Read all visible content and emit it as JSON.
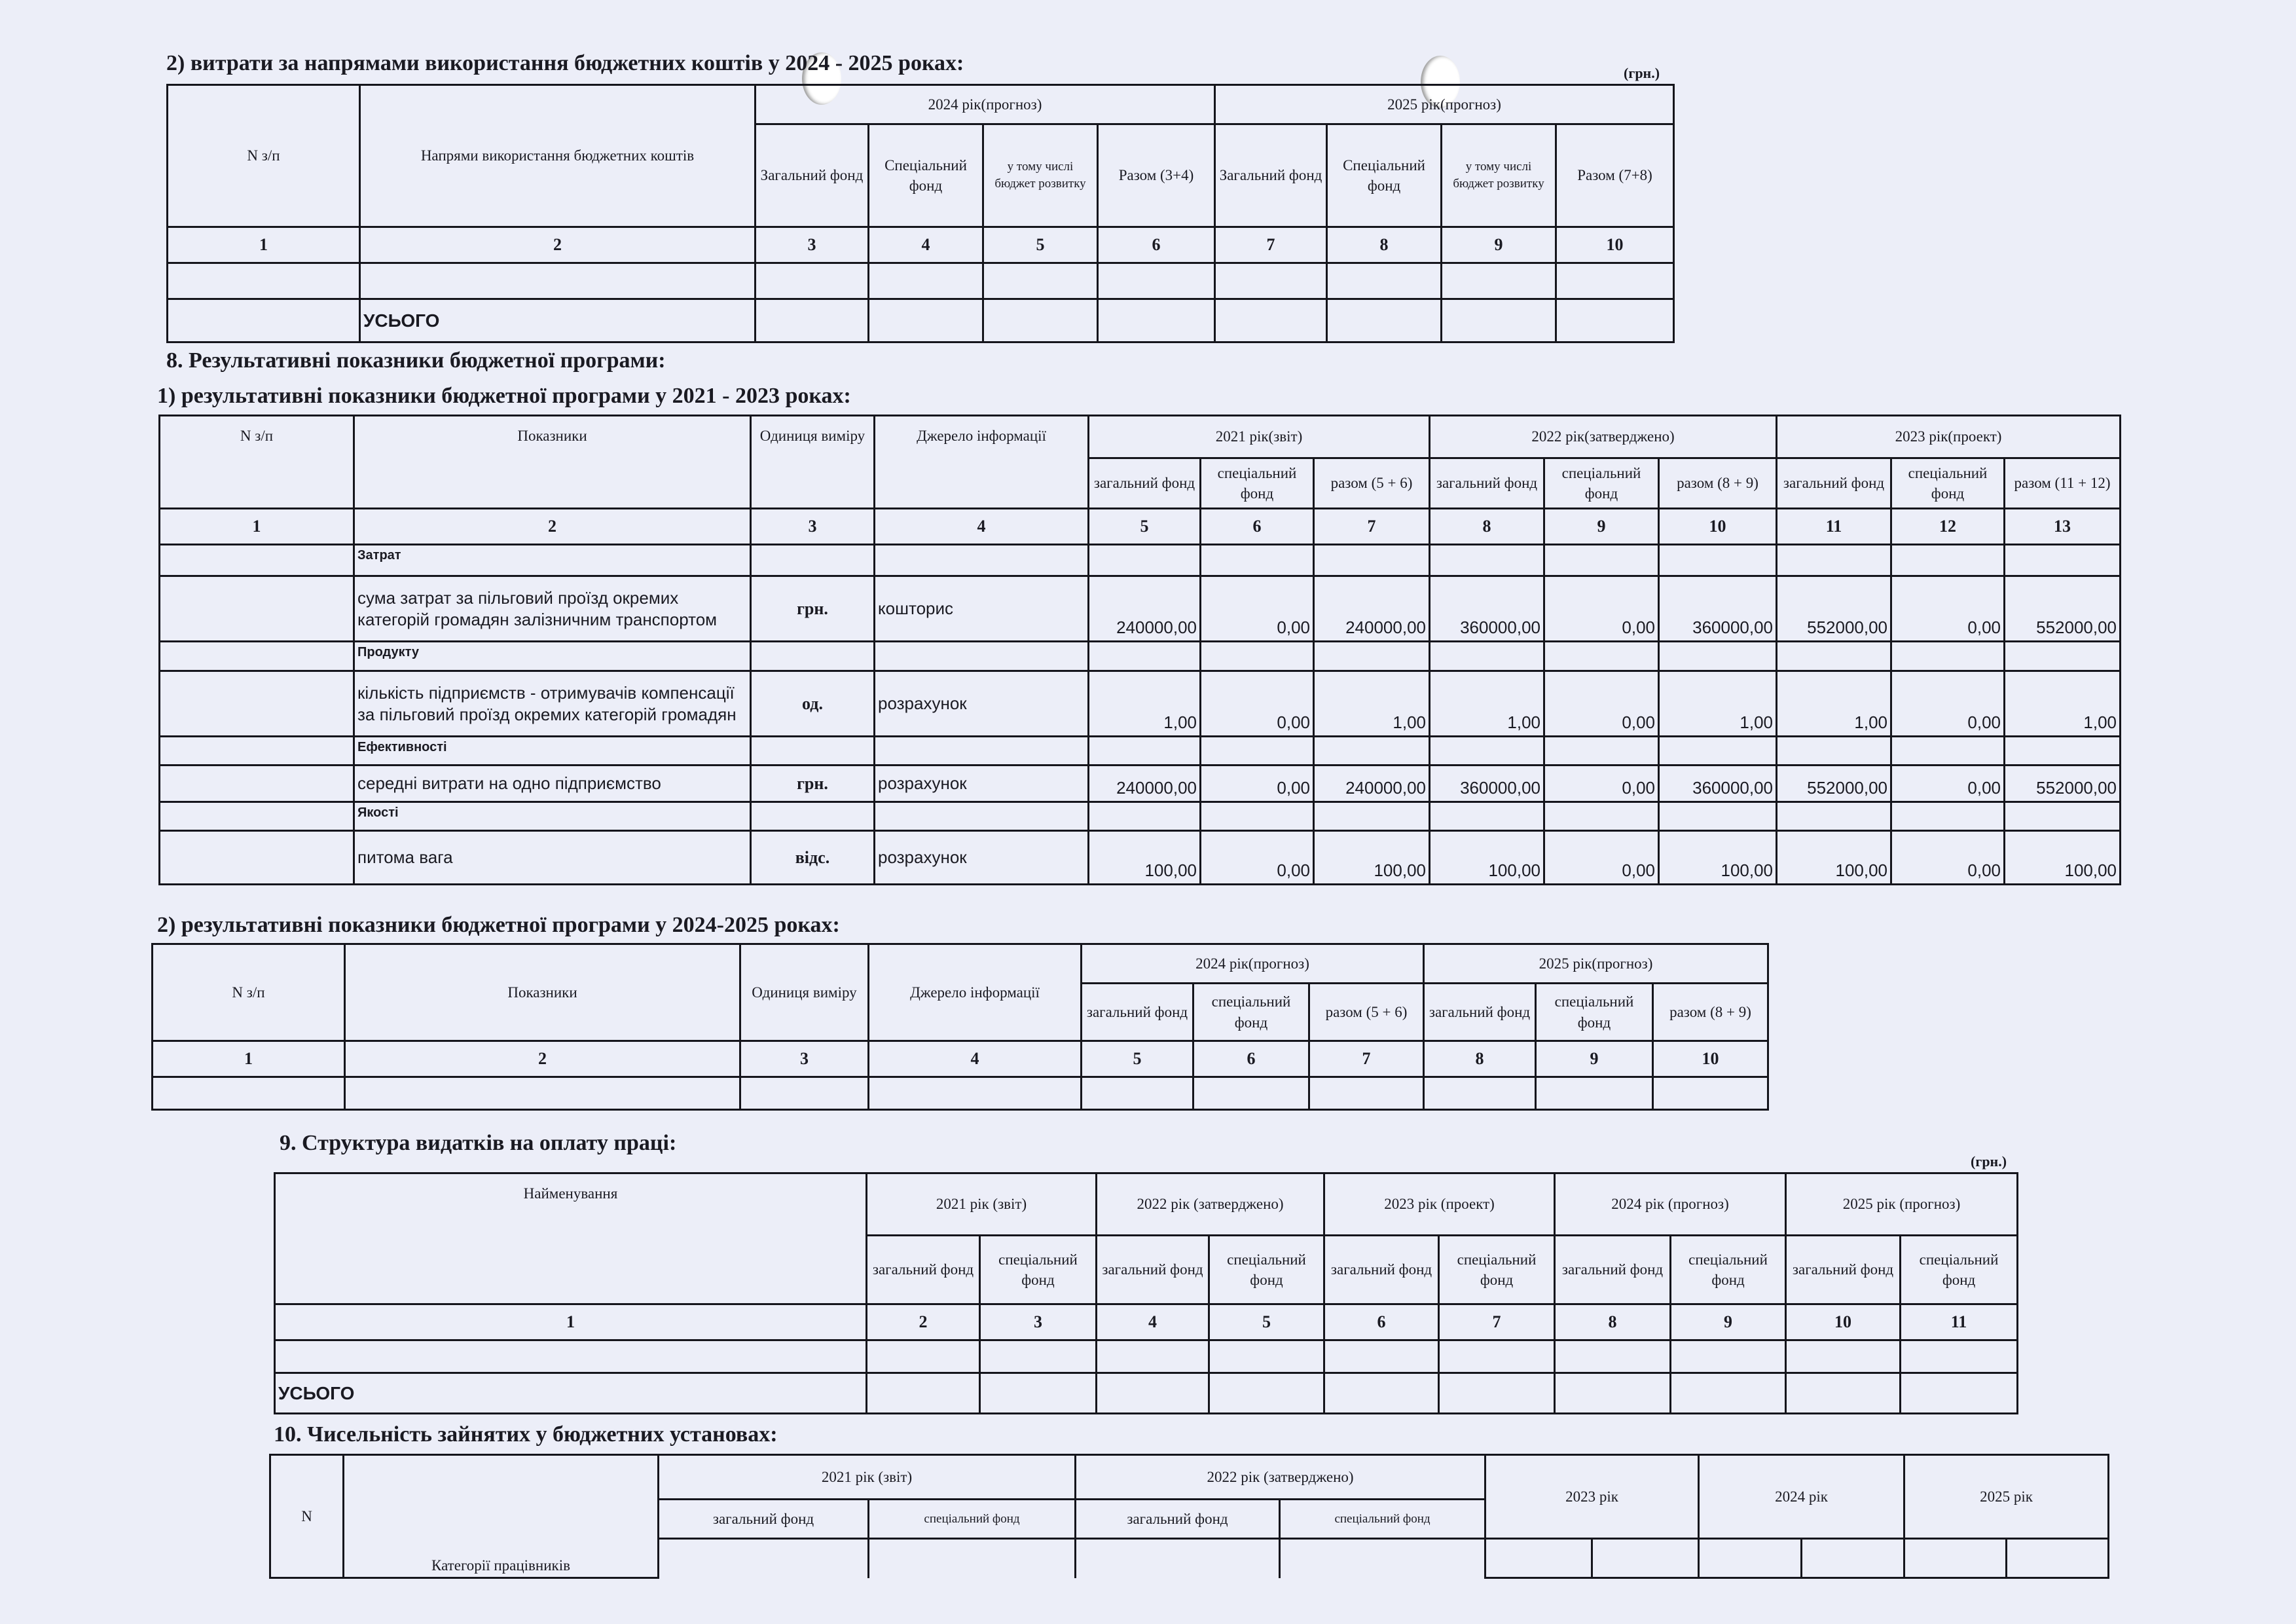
{
  "s7_2": {
    "title": "2) витрати за напрямами використання бюджетних коштів у 2024 - 2025 роках:",
    "unit": "(грн.)",
    "h": {
      "n": "N з/п",
      "dir": "Напрями використання бюджетних коштів",
      "y2024": "2024 рік(прогноз)",
      "y2025": "2025 рік(прогноз)",
      "gen": "Загальний фонд",
      "spec": "Спеціальний фонд",
      "dev": "у тому числі бюджет розвитку",
      "sum34": "Разом (3+4)",
      "sum78": "Разом (7+8)"
    },
    "nums": [
      "1",
      "2",
      "3",
      "4",
      "5",
      "6",
      "7",
      "8",
      "9",
      "10"
    ],
    "total": "УСЬОГО"
  },
  "s8": {
    "title": "8. Результативні показники бюджетної програми:"
  },
  "s8_1": {
    "title": "1) результативні показники бюджетної програми у 2021 - 2023 роках:",
    "h": {
      "n": "N з/п",
      "ind": "Показники",
      "unit": "Одиниця виміру",
      "src": "Джерело інформації",
      "y2021": "2021 рік(звіт)",
      "y2022": "2022 рік(затверджено)",
      "y2023": "2023 рік(проект)",
      "gen": "загальний фонд",
      "spec": "спеціальний фонд",
      "s56": "разом (5 + 6)",
      "s89": "разом (8 + 9)",
      "s1112": "разом (11 + 12)"
    },
    "nums": [
      "1",
      "2",
      "3",
      "4",
      "5",
      "6",
      "7",
      "8",
      "9",
      "10",
      "11",
      "12",
      "13"
    ],
    "rows": [
      {
        "section": "Затрат",
        "name": "сума затрат за пільговий проїзд окремих категорій громадян залізничним транспортом",
        "unit": "грн.",
        "src": "кошторис",
        "v": [
          "240000,00",
          "0,00",
          "240000,00",
          "360000,00",
          "0,00",
          "360000,00",
          "552000,00",
          "0,00",
          "552000,00"
        ]
      },
      {
        "section": "Продукту",
        "name": "кількість підприємств - отримувачів компенсації за пільговий проїзд окремих категорій громадян",
        "unit": "од.",
        "src": "розрахунок",
        "v": [
          "1,00",
          "0,00",
          "1,00",
          "1,00",
          "0,00",
          "1,00",
          "1,00",
          "0,00",
          "1,00"
        ]
      },
      {
        "section": "Ефективності",
        "name": "середні витрати на одно підприємство",
        "unit": "грн.",
        "src": "розрахунок",
        "v": [
          "240000,00",
          "0,00",
          "240000,00",
          "360000,00",
          "0,00",
          "360000,00",
          "552000,00",
          "0,00",
          "552000,00"
        ]
      },
      {
        "section": "Якості",
        "name": "питома вага",
        "unit": "відс.",
        "src": "розрахунок",
        "v": [
          "100,00",
          "0,00",
          "100,00",
          "100,00",
          "0,00",
          "100,00",
          "100,00",
          "0,00",
          "100,00"
        ]
      }
    ]
  },
  "s8_2": {
    "title": "2) результативні показники бюджетної програми у   2024-2025 роках:",
    "h": {
      "n": "N з/п",
      "ind": "Показники",
      "unit": "Одиниця виміру",
      "src": "Джерело інформації",
      "y2024": "2024 рік(прогноз)",
      "y2025": "2025 рік(прогноз)",
      "gen": "загальний фонд",
      "spec": "спеціальний фонд",
      "s56": "разом (5 + 6)",
      "s89": "разом (8 + 9)"
    },
    "nums": [
      "1",
      "2",
      "3",
      "4",
      "5",
      "6",
      "7",
      "8",
      "9",
      "10"
    ]
  },
  "s9": {
    "title": "9. Структура видатків на оплату праці:",
    "unit": "(грн.)",
    "h": {
      "name": "Найменування",
      "y2021": "2021 рік (звіт)",
      "y2022": "2022 рік (затверджено)",
      "y2023": "2023 рік (проект)",
      "y2024": "2024 рік (прогноз)",
      "y2025": "2025 рік (прогноз)",
      "gen": "загальний фонд",
      "spec": "спеціальний фонд"
    },
    "nums": [
      "1",
      "2",
      "3",
      "4",
      "5",
      "6",
      "7",
      "8",
      "9",
      "10",
      "11"
    ],
    "total": "УСЬОГО"
  },
  "s10": {
    "title": "10. Чисельність зайнятих у бюджетних установах:",
    "h": {
      "n": "N",
      "cat": "Категорії працівників",
      "y2021": "2021 рік (звіт)",
      "y2022": "2022 рік (затверджено)",
      "y2023": "2023 рік",
      "y2024": "2024 рік",
      "y2025": "2025 рік",
      "gen": "загальний фонд",
      "spec": "спеціальний фонд"
    }
  }
}
